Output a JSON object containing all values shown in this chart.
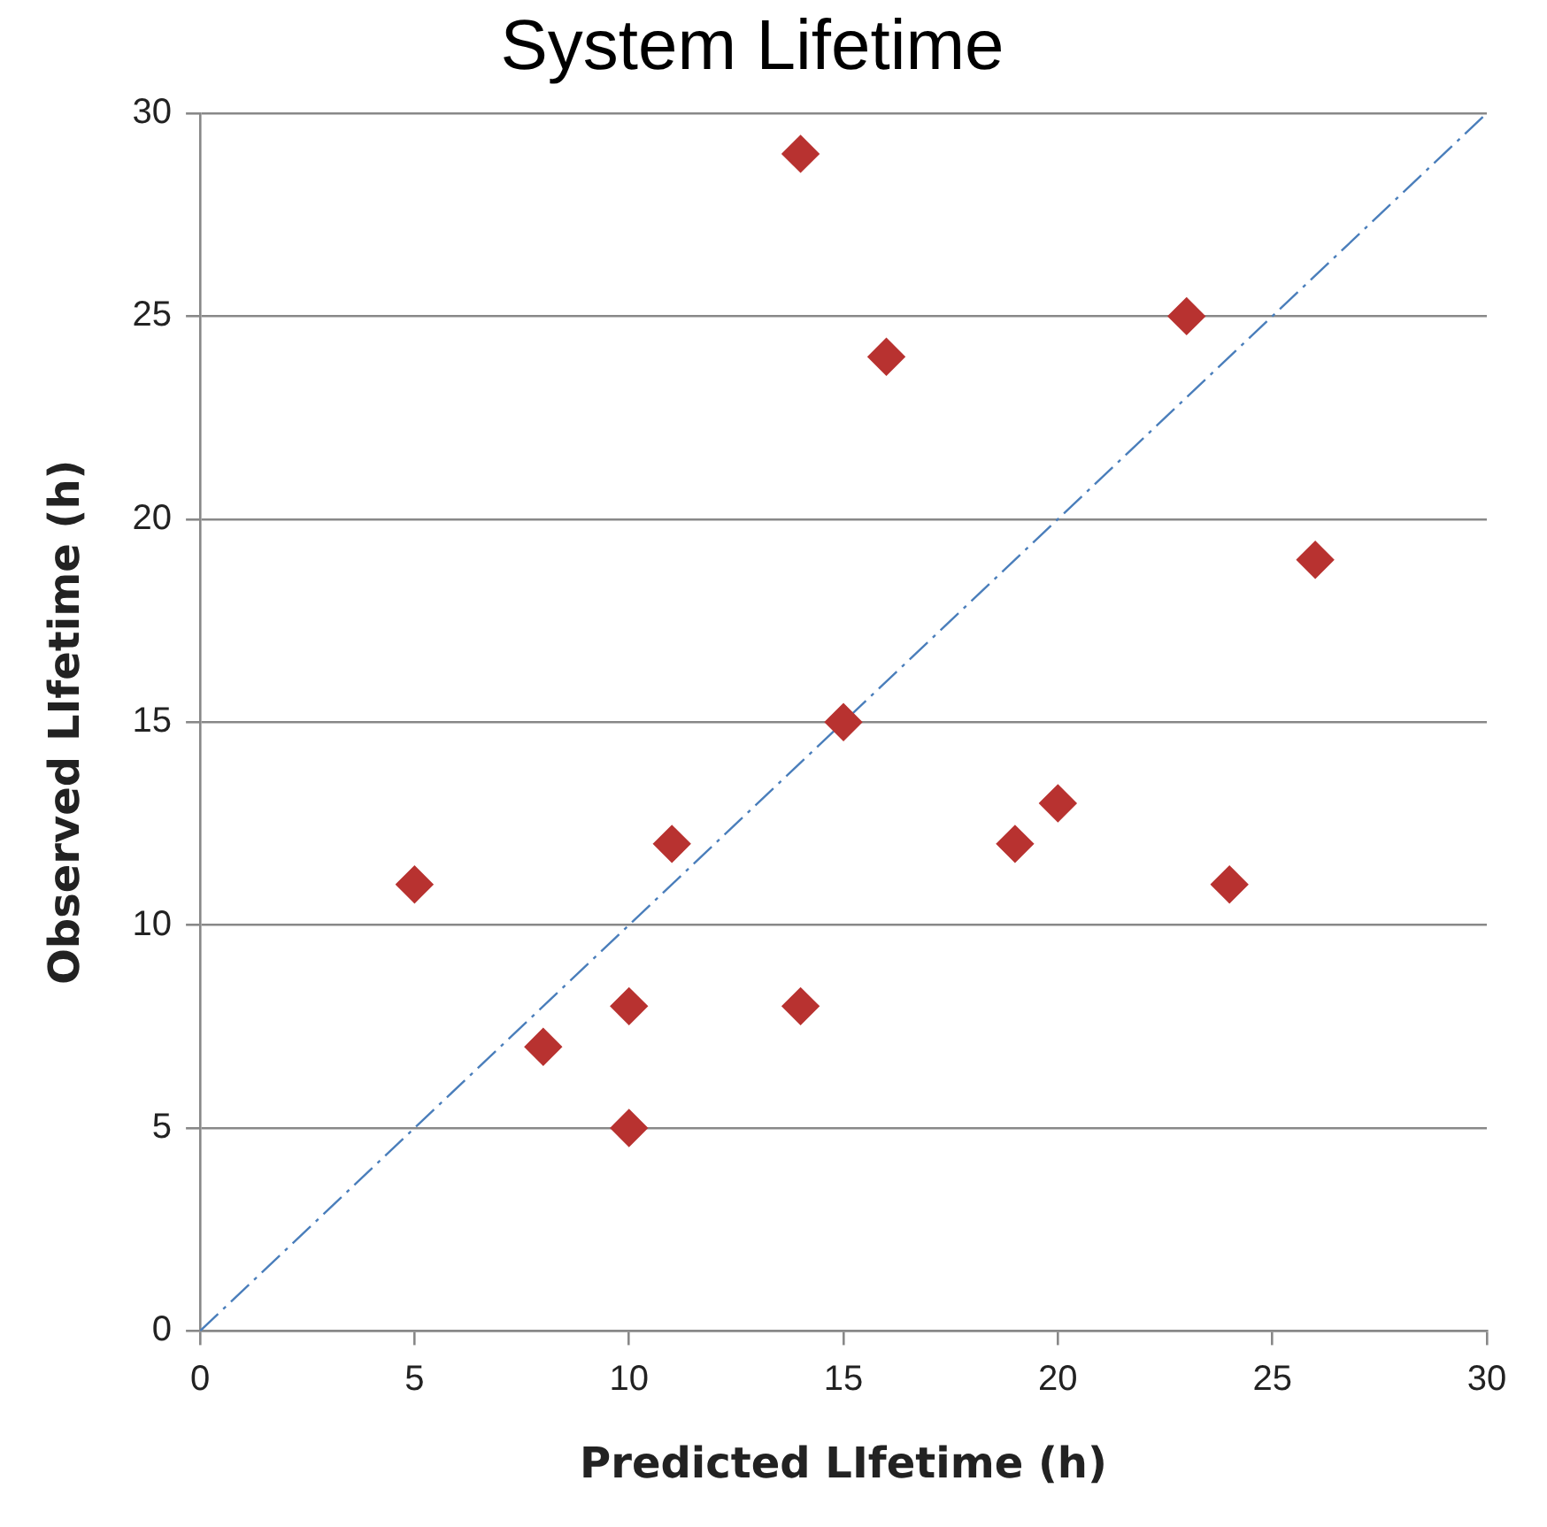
{
  "chart_data": {
    "type": "scatter",
    "title": "System Lifetime",
    "xlabel": "Predicted LIfetime (h)",
    "ylabel": "Observed LIfetime (h)",
    "xlim": [
      0,
      30
    ],
    "xticks": [
      0,
      5,
      10,
      15,
      20,
      25,
      30
    ],
    "ylim": [
      0,
      30
    ],
    "yticks": [
      0,
      5,
      10,
      15,
      20,
      25,
      30
    ],
    "grid": "y",
    "legend": false,
    "marker": "diamond",
    "series": [
      {
        "color": "#b83230",
        "x": [
          5,
          8,
          10,
          10,
          11,
          14,
          14,
          15,
          16,
          19,
          20,
          23,
          24,
          26
        ],
        "values": [
          11,
          7,
          8,
          5,
          12,
          8,
          29,
          15,
          24,
          12,
          13,
          25,
          11,
          19
        ]
      },
      {
        "type": "line",
        "color": "#4a7ebb",
        "line_style": "dashed",
        "marker": "none",
        "x": [
          0,
          30
        ],
        "values": [
          0,
          30
        ]
      }
    ]
  }
}
